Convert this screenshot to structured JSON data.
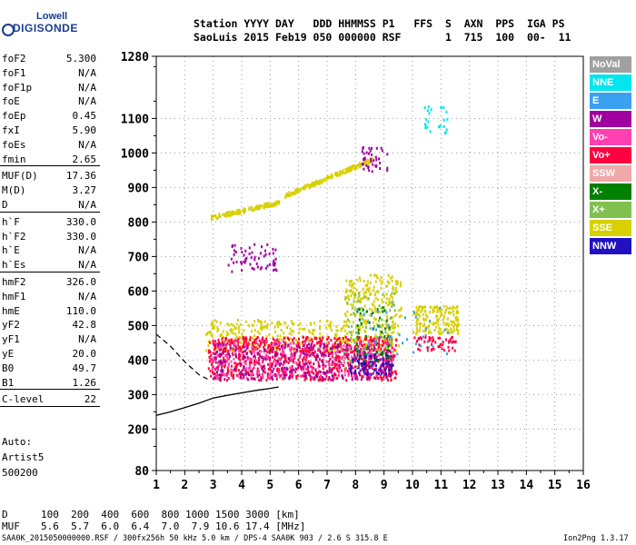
{
  "logo": {
    "top": "Lowell",
    "bottom": "DIGISONDE"
  },
  "header": {
    "line1": "Station YYYY DAY   DDD HHMMSS P1   FFS  S  AXN  PPS  IGA PS",
    "line2": "SaoLuis 2015 Feb19 050 000000 RSF       1  715  100  00-  11"
  },
  "params": [
    {
      "name": "foF2",
      "value": "5.300"
    },
    {
      "name": "foF1",
      "value": "N/A"
    },
    {
      "name": "foF1p",
      "value": "N/A"
    },
    {
      "name": "foE",
      "value": "N/A"
    },
    {
      "name": "foEp",
      "value": "0.45"
    },
    {
      "name": "fxI",
      "value": "5.90"
    },
    {
      "name": "foEs",
      "value": "N/A"
    },
    {
      "name": "fmin",
      "value": "2.65"
    },
    {
      "name": "MUF(D)",
      "value": "17.36"
    },
    {
      "name": "M(D)",
      "value": "3.27"
    },
    {
      "name": "D",
      "value": "N/A"
    },
    {
      "name": "h`F",
      "value": "330.0"
    },
    {
      "name": "h`F2",
      "value": "330.0"
    },
    {
      "name": "h`E",
      "value": "N/A"
    },
    {
      "name": "h`Es",
      "value": "N/A"
    },
    {
      "name": "hmF2",
      "value": "326.0"
    },
    {
      "name": "hmF1",
      "value": "N/A"
    },
    {
      "name": "hmE",
      "value": "110.0"
    },
    {
      "name": "yF2",
      "value": "42.8"
    },
    {
      "name": "yF1",
      "value": "N/A"
    },
    {
      "name": "yE",
      "value": "20.0"
    },
    {
      "name": "B0",
      "value": "49.7"
    },
    {
      "name": "B1",
      "value": "1.26"
    },
    {
      "name": "C-level",
      "value": "22"
    }
  ],
  "auto": {
    "line1": "Auto:",
    "line2": "Artist5",
    "line3": "500200"
  },
  "legend": [
    {
      "label": "NoVal",
      "bg": "#a0a0a0",
      "fg": "#ffffff"
    },
    {
      "label": "NNE",
      "bg": "#00e5ee",
      "fg": "#ffffff"
    },
    {
      "label": "E",
      "bg": "#3aa0f0",
      "fg": "#ffffff"
    },
    {
      "label": "W",
      "bg": "#a000a0",
      "fg": "#ffffff"
    },
    {
      "label": "Vo-",
      "bg": "#ff40b0",
      "fg": "#ffffff"
    },
    {
      "label": "Vo+",
      "bg": "#ff0040",
      "fg": "#ffffff"
    },
    {
      "label": "SSW",
      "bg": "#f0a8a8",
      "fg": "#ffffff"
    },
    {
      "label": "X-",
      "bg": "#008000",
      "fg": "#ffffff"
    },
    {
      "label": "X+",
      "bg": "#80c050",
      "fg": "#ffffff"
    },
    {
      "label": "SSE",
      "bg": "#d8d000",
      "fg": "#ffffff"
    },
    {
      "label": "NNW",
      "bg": "#2010c0",
      "fg": "#ffffff"
    }
  ],
  "table": {
    "d_label": "D",
    "d_values": "100  200  400  600  800 1000 1500 3000 [km]",
    "muf_label": "MUF",
    "muf_values": "5.6  5.7  6.0  6.4  7.0  7.9 10.6 17.4 [MHz]"
  },
  "footer": {
    "left": "SAA0K_2015050000000.RSF / 300fx256h 50 kHz 5.0 km / DPS-4 SAA0K 903 / 2.6 S 315.8 E",
    "right": "Ion2Png 1.3.17"
  },
  "chart_data": {
    "type": "scatter",
    "xlim": [
      1,
      16
    ],
    "ylim": [
      80,
      1280
    ],
    "x_ticks": [
      "1",
      "2",
      "3",
      "4",
      "5",
      "6",
      "7",
      "8",
      "9",
      "10",
      "11",
      "12",
      "13",
      "14",
      "15",
      "16"
    ],
    "y_ticks": [
      80,
      200,
      300,
      400,
      500,
      600,
      700,
      800,
      900,
      1000,
      1100,
      1280
    ],
    "y_tick_labels": [
      "80",
      "200",
      "300",
      "400",
      "500",
      "600",
      "700",
      "800",
      "900",
      "1000",
      "1100",
      "1280"
    ],
    "grid": true,
    "clusters": [
      {
        "name": "SSE",
        "color": "#d8d000",
        "x": [
          2.9,
          5.3
        ],
        "y": [
          815,
          860
        ],
        "n": 140
      },
      {
        "name": "SSE",
        "color": "#d8d000",
        "x": [
          5.5,
          8.6
        ],
        "y": [
          880,
          985
        ],
        "n": 180
      },
      {
        "name": "SSE",
        "color": "#d8d000",
        "x": [
          2.7,
          9.5
        ],
        "y": [
          430,
          520
        ],
        "n": 420
      },
      {
        "name": "SSE",
        "color": "#d8d000",
        "x": [
          7.6,
          9.6
        ],
        "y": [
          520,
          650
        ],
        "n": 160
      },
      {
        "name": "SSE",
        "color": "#d8d000",
        "x": [
          10.0,
          11.6
        ],
        "y": [
          480,
          560
        ],
        "n": 160
      },
      {
        "name": "Vo+",
        "color": "#ff0040",
        "x": [
          2.8,
          9.4
        ],
        "y": [
          345,
          470
        ],
        "n": 900
      },
      {
        "name": "Vo-",
        "color": "#ff40b0",
        "x": [
          2.9,
          9.3
        ],
        "y": [
          350,
          460
        ],
        "n": 300
      },
      {
        "name": "W",
        "color": "#a000a0",
        "x": [
          3.0,
          9.3
        ],
        "y": [
          345,
          450
        ],
        "n": 260
      },
      {
        "name": "W",
        "color": "#a000a0",
        "x": [
          3.5,
          5.2
        ],
        "y": [
          660,
          740
        ],
        "n": 60
      },
      {
        "name": "W",
        "color": "#a000a0",
        "x": [
          8.2,
          9.1
        ],
        "y": [
          950,
          1020
        ],
        "n": 40
      },
      {
        "name": "NNW",
        "color": "#2010c0",
        "x": [
          7.8,
          9.3
        ],
        "y": [
          360,
          420
        ],
        "n": 80
      },
      {
        "name": "X+",
        "color": "#80c050",
        "x": [
          7.4,
          9.4
        ],
        "y": [
          380,
          600
        ],
        "n": 80
      },
      {
        "name": "X-",
        "color": "#008000",
        "x": [
          8.0,
          9.2
        ],
        "y": [
          400,
          560
        ],
        "n": 50
      },
      {
        "name": "NNE",
        "color": "#00e5ee",
        "x": [
          10.4,
          11.2
        ],
        "y": [
          1060,
          1140
        ],
        "n": 25
      },
      {
        "name": "E",
        "color": "#3aa0f0",
        "x": [
          8.0,
          11.4
        ],
        "y": [
          420,
          560
        ],
        "n": 40
      },
      {
        "name": "Vo+",
        "color": "#ff0040",
        "x": [
          10.0,
          11.6
        ],
        "y": [
          430,
          470
        ],
        "n": 50
      }
    ],
    "virtual_height_trace": {
      "x": [
        1.0,
        1.5,
        2.0,
        2.5,
        3.0,
        3.5,
        4.0,
        4.5,
        5.0,
        5.3
      ],
      "y": [
        240,
        250,
        262,
        275,
        290,
        298,
        305,
        312,
        318,
        322
      ]
    },
    "dashed_trace": {
      "x": [
        1.0,
        1.5,
        2.0,
        2.5,
        2.8
      ],
      "y": [
        475,
        440,
        395,
        358,
        345
      ]
    }
  }
}
